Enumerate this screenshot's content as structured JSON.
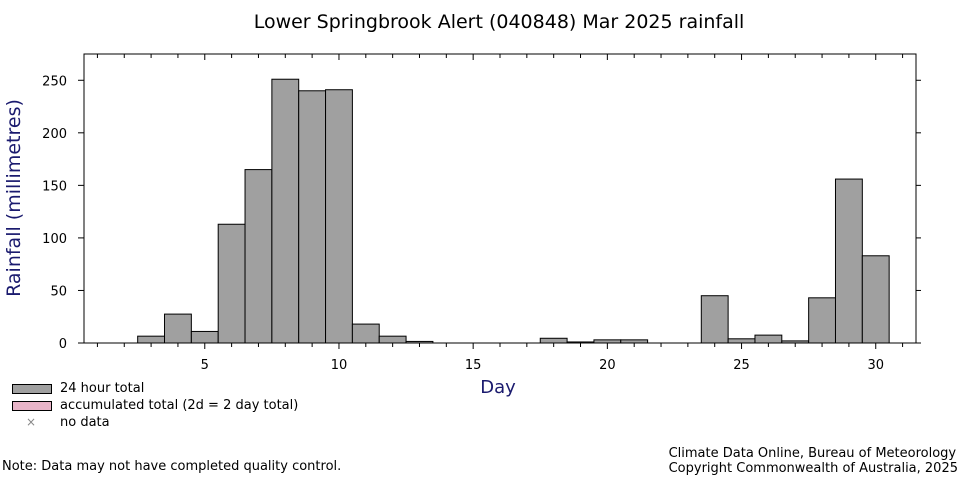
{
  "chart_data": {
    "type": "bar",
    "title": "Lower Springbrook Alert (040848) Mar 2025 rainfall",
    "xlabel": "Day",
    "ylabel": "Rainfall (millimetres)",
    "xlim": [
      0.5,
      31.5
    ],
    "ylim": [
      0,
      275
    ],
    "x_ticks": [
      5,
      10,
      15,
      20,
      25,
      30
    ],
    "y_ticks": [
      0,
      50,
      100,
      150,
      200,
      250
    ],
    "grid": false,
    "series": [
      {
        "name": "24 hour total",
        "color": "#a0a0a0",
        "x": [
          1,
          2,
          3,
          4,
          5,
          6,
          7,
          8,
          9,
          10,
          11,
          12,
          13,
          14,
          15,
          16,
          17,
          18,
          19,
          20,
          21,
          22,
          23,
          24,
          25,
          26,
          27,
          28,
          29,
          30,
          31
        ],
        "values": [
          0,
          0,
          6.5,
          27.5,
          11,
          113,
          165,
          251,
          240,
          241,
          18,
          6.5,
          1.5,
          0,
          0,
          0,
          0,
          4.5,
          1,
          3,
          3,
          0,
          0,
          45,
          4,
          7.5,
          2,
          43,
          156,
          83,
          0
        ]
      }
    ]
  },
  "legend": {
    "items": [
      {
        "label": "24 hour total",
        "color": "#a0a0a0"
      },
      {
        "label": "accumulated total (2d = 2 day total)",
        "color": "#e8b4c8"
      },
      {
        "label": "no data",
        "symbol": "×"
      }
    ]
  },
  "footer": {
    "note": "Note: Data may not have completed quality control.",
    "credit_line1": "Climate Data Online, Bureau of Meteorology",
    "credit_line2": "Copyright Commonwealth of Australia, 2025"
  }
}
